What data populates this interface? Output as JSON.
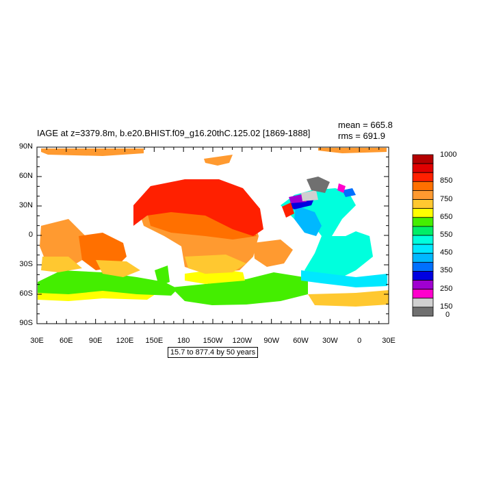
{
  "header": {
    "title": "IAGE at z=3379.8m, b.e20.BHIST.f09_g16.20thC.125.02 [1869-1888]",
    "mean": "mean = 665.8",
    "rms": "rms = 691.9"
  },
  "axes": {
    "y_ticks": [
      "90N",
      "60N",
      "30N",
      "0",
      "30S",
      "60S",
      "90S"
    ],
    "x_ticks": [
      "30E",
      "60E",
      "90E",
      "120E",
      "150E",
      "180",
      "150W",
      "120W",
      "90W",
      "60W",
      "30W",
      "0",
      "30E"
    ]
  },
  "footer": {
    "range_text": "15.7 to 877.4 by 50 years"
  },
  "colorbar": {
    "labels": [
      "1000",
      "850",
      "750",
      "650",
      "550",
      "450",
      "350",
      "250",
      "150",
      "0"
    ],
    "colors": [
      "#b40000",
      "#e00000",
      "#ff2000",
      "#ff7000",
      "#ff9a30",
      "#ffc830",
      "#ffff00",
      "#44ee00",
      "#00ee66",
      "#00ffdd",
      "#00e8ff",
      "#00b8ff",
      "#0070ff",
      "#0000e0",
      "#a000d0",
      "#ff00cc",
      "#d0d0d0",
      "#707070"
    ]
  },
  "stats_colors": {
    "land": "#ffffff"
  }
}
